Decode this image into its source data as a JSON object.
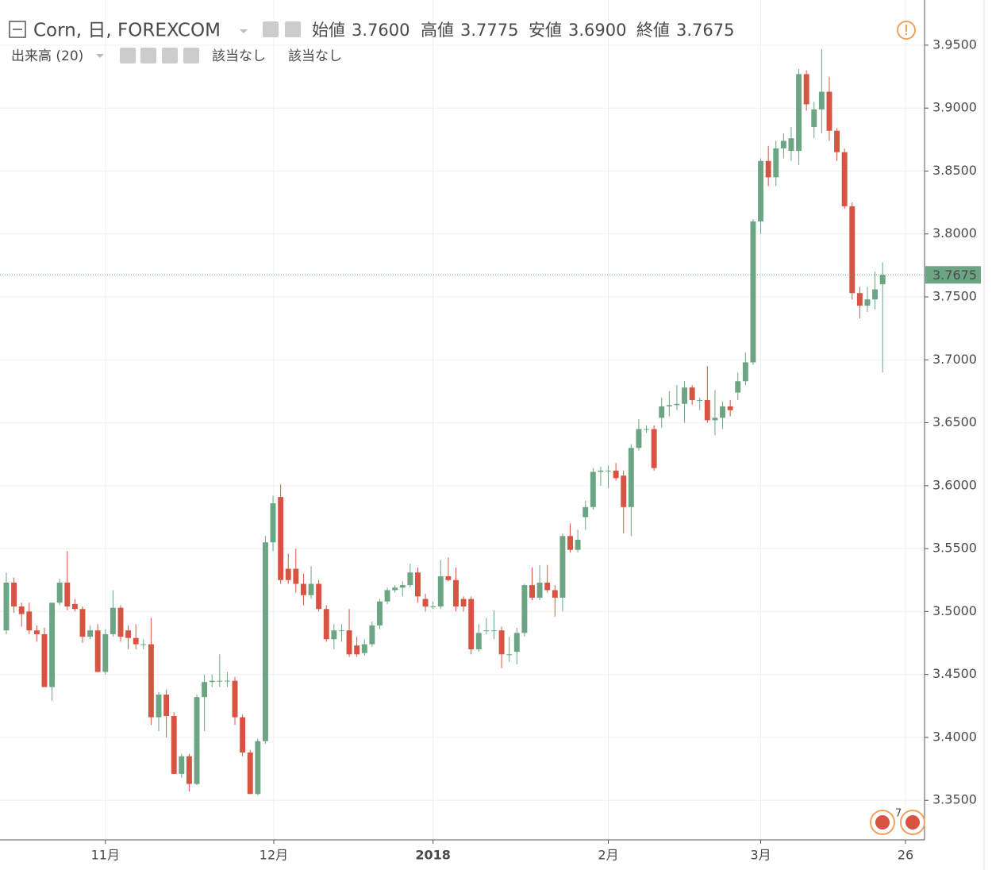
{
  "chart_data": {
    "type": "candlestick",
    "header": {
      "title": "Corn, 日, FOREXCOM",
      "ohlc": [
        {
          "label": "始値",
          "value": "3.7600"
        },
        {
          "label": "高値",
          "value": "3.7775"
        },
        {
          "label": "安値",
          "value": "3.6900"
        },
        {
          "label": "終値",
          "value": "3.7675"
        }
      ],
      "volume_label": "出来高 (20)",
      "volume_values": [
        "該当なし",
        "該当なし"
      ]
    },
    "up_color": "#6ba583",
    "down_color": "#d75442",
    "open": [
      3.485,
      3.523,
      3.504,
      3.5,
      3.485,
      3.482,
      3.44,
      3.507,
      3.523,
      3.506,
      3.502,
      3.48,
      3.485,
      3.452,
      3.482,
      3.503,
      3.485,
      3.479,
      3.474,
      3.474,
      3.416,
      3.434,
      3.417,
      3.371,
      3.385,
      3.363,
      3.432,
      3.444,
      3.445,
      3.445,
      3.445,
      3.416,
      3.388,
      3.355,
      3.397,
      3.555,
      3.591,
      3.534,
      3.534,
      3.522,
      3.513,
      3.522,
      3.502,
      3.478,
      3.485,
      3.485,
      3.473,
      3.467,
      3.474,
      3.489,
      3.508,
      3.517,
      3.519,
      3.521,
      3.531,
      3.51,
      3.504,
      3.504,
      3.528,
      3.525,
      3.51,
      3.51,
      3.47,
      3.485,
      3.485,
      3.485,
      3.466,
      3.468,
      3.483,
      3.521,
      3.511,
      3.523,
      3.517,
      3.511,
      3.56,
      3.549,
      3.575,
      3.583,
      3.611,
      3.612,
      3.612,
      3.608,
      3.583,
      3.63,
      3.645,
      3.645,
      3.654,
      3.663,
      3.664,
      3.665,
      3.678,
      3.668,
      3.668,
      3.652,
      3.654,
      3.663,
      3.674,
      3.683,
      3.698,
      3.81,
      3.858,
      3.845,
      3.868,
      3.866,
      3.866,
      3.927,
      3.885,
      3.899,
      3.913,
      3.882,
      3.865,
      3.822,
      3.753,
      3.743,
      3.748,
      3.76
    ],
    "high": [
      3.531,
      3.527,
      3.507,
      3.507,
      3.489,
      3.487,
      3.507,
      3.526,
      3.548,
      3.51,
      3.504,
      3.489,
      3.49,
      3.486,
      3.517,
      3.505,
      3.489,
      3.49,
      3.478,
      3.495,
      3.436,
      3.438,
      3.42,
      3.387,
      3.387,
      3.434,
      3.45,
      3.45,
      3.466,
      3.452,
      3.448,
      3.418,
      3.39,
      3.399,
      3.56,
      3.592,
      3.601,
      3.546,
      3.55,
      3.53,
      3.536,
      3.525,
      3.505,
      3.49,
      3.49,
      3.502,
      3.48,
      3.478,
      3.492,
      3.51,
      3.519,
      3.521,
      3.524,
      3.538,
      3.535,
      3.514,
      3.508,
      3.541,
      3.543,
      3.535,
      3.512,
      3.512,
      3.49,
      3.495,
      3.501,
      3.488,
      3.48,
      3.487,
      3.522,
      3.535,
      3.537,
      3.537,
      3.521,
      3.562,
      3.57,
      3.565,
      3.588,
      3.614,
      3.615,
      3.616,
      3.618,
      3.612,
      3.633,
      3.653,
      3.648,
      3.648,
      3.67,
      3.675,
      3.68,
      3.683,
      3.68,
      3.67,
      3.695,
      3.676,
      3.667,
      3.668,
      3.69,
      3.706,
      3.812,
      3.86,
      3.87,
      3.874,
      3.88,
      3.885,
      3.931,
      3.93,
      3.905,
      3.947,
      3.925,
      3.884,
      3.868,
      3.825,
      3.758,
      3.758,
      3.77,
      3.7775
    ],
    "low": [
      3.482,
      3.499,
      3.488,
      3.482,
      3.476,
      3.44,
      3.429,
      3.505,
      3.501,
      3.5,
      3.475,
      3.478,
      3.452,
      3.45,
      3.48,
      3.476,
      3.47,
      3.47,
      3.47,
      3.41,
      3.405,
      3.4,
      3.371,
      3.368,
      3.357,
      3.362,
      3.405,
      3.44,
      3.44,
      3.44,
      3.41,
      3.385,
      3.355,
      3.354,
      3.395,
      3.548,
      3.522,
      3.522,
      3.515,
      3.505,
      3.51,
      3.5,
      3.476,
      3.47,
      3.476,
      3.464,
      3.464,
      3.465,
      3.472,
      3.486,
      3.506,
      3.515,
      3.512,
      3.519,
      3.507,
      3.5,
      3.502,
      3.502,
      3.524,
      3.5,
      3.5,
      3.466,
      3.468,
      3.482,
      3.478,
      3.455,
      3.46,
      3.458,
      3.48,
      3.509,
      3.509,
      3.515,
      3.496,
      3.5,
      3.547,
      3.547,
      3.565,
      3.581,
      3.6,
      3.598,
      3.604,
      3.562,
      3.56,
      3.628,
      3.642,
      3.612,
      3.646,
      3.655,
      3.66,
      3.65,
      3.664,
      3.66,
      3.65,
      3.64,
      3.645,
      3.655,
      3.668,
      3.68,
      3.696,
      3.8,
      3.838,
      3.838,
      3.86,
      3.858,
      3.855,
      3.898,
      3.876,
      3.88,
      3.874,
      3.858,
      3.82,
      3.748,
      3.733,
      3.738,
      3.74,
      3.69
    ],
    "close": [
      3.523,
      3.504,
      3.498,
      3.485,
      3.482,
      3.44,
      3.507,
      3.523,
      3.504,
      3.502,
      3.48,
      3.485,
      3.452,
      3.482,
      3.503,
      3.48,
      3.479,
      3.474,
      3.474,
      3.416,
      3.434,
      3.417,
      3.371,
      3.385,
      3.363,
      3.432,
      3.444,
      3.445,
      3.445,
      3.445,
      3.416,
      3.388,
      3.355,
      3.397,
      3.555,
      3.586,
      3.525,
      3.525,
      3.522,
      3.513,
      3.522,
      3.502,
      3.478,
      3.485,
      3.485,
      3.466,
      3.466,
      3.474,
      3.489,
      3.508,
      3.517,
      3.519,
      3.521,
      3.531,
      3.512,
      3.504,
      3.504,
      3.528,
      3.525,
      3.504,
      3.504,
      3.47,
      3.483,
      3.485,
      3.485,
      3.466,
      3.466,
      3.483,
      3.521,
      3.511,
      3.523,
      3.517,
      3.511,
      3.56,
      3.549,
      3.557,
      3.583,
      3.611,
      3.612,
      3.612,
      3.606,
      3.583,
      3.63,
      3.645,
      3.645,
      3.614,
      3.663,
      3.664,
      3.665,
      3.678,
      3.668,
      3.668,
      3.652,
      3.654,
      3.663,
      3.66,
      3.683,
      3.698,
      3.81,
      3.858,
      3.845,
      3.868,
      3.874,
      3.876,
      3.927,
      3.903,
      3.899,
      3.913,
      3.882,
      3.865,
      3.822,
      3.753,
      3.743,
      3.748,
      3.756,
      3.7675
    ],
    "xlim": [
      -0.83,
      120.5
    ],
    "xticks": [
      {
        "value": 13,
        "label": "11月"
      },
      {
        "value": 35.1,
        "label": "12月"
      },
      {
        "value": 56,
        "label": "2018"
      },
      {
        "value": 79,
        "label": "2月"
      },
      {
        "value": 99,
        "label": "3月"
      },
      {
        "value": 118,
        "label": "26"
      }
    ],
    "ylim": [
      3.3186,
      3.9859
    ],
    "yticks": [
      {
        "value": 3.35,
        "label": "3.3500"
      },
      {
        "value": 3.4,
        "label": "3.4000"
      },
      {
        "value": 3.45,
        "label": "3.4500"
      },
      {
        "value": 3.5,
        "label": "3.5000"
      },
      {
        "value": 3.55,
        "label": "3.5500"
      },
      {
        "value": 3.6,
        "label": "3.6000"
      },
      {
        "value": 3.65,
        "label": "3.6500"
      },
      {
        "value": 3.7,
        "label": "3.7000"
      },
      {
        "value": 3.75,
        "label": "3.7500"
      },
      {
        "value": 3.8,
        "label": "3.8000"
      },
      {
        "value": 3.85,
        "label": "3.8500"
      },
      {
        "value": 3.9,
        "label": "3.9000"
      },
      {
        "value": 3.95,
        "label": "3.9500"
      }
    ],
    "last_price": {
      "value": 3.7675,
      "label": "3.7675"
    },
    "event_count": "7",
    "grid": true
  }
}
